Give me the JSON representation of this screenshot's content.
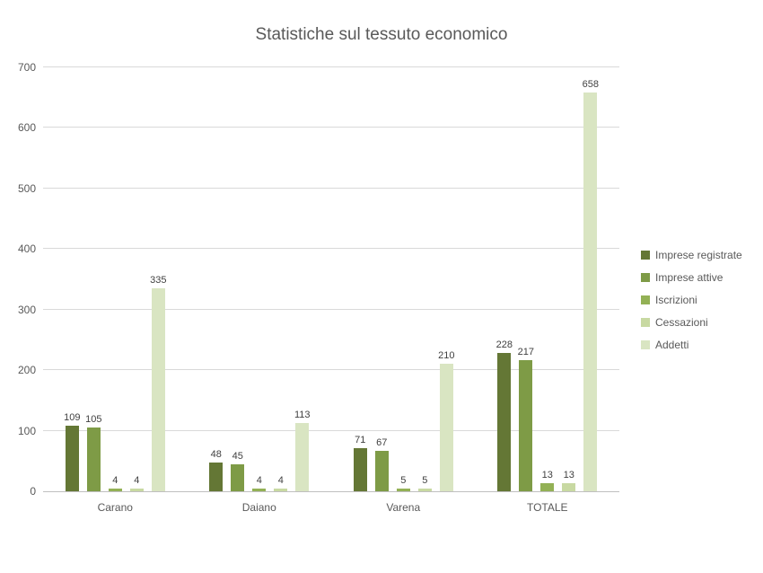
{
  "chart_data": {
    "type": "bar",
    "title": "Statistiche sul tessuto economico",
    "categories": [
      "Carano",
      "Daiano",
      "Varena",
      "TOTALE"
    ],
    "series": [
      {
        "name": "Imprese registrate",
        "color": "#647735",
        "values": [
          109,
          48,
          71,
          228
        ]
      },
      {
        "name": "Imprese attive",
        "color": "#7e9b46",
        "values": [
          105,
          45,
          67,
          217
        ]
      },
      {
        "name": "Iscrizioni",
        "color": "#93b155",
        "values": [
          4,
          4,
          5,
          13
        ]
      },
      {
        "name": "Cessazioni",
        "color": "#c8d9a2",
        "values": [
          4,
          4,
          5,
          13
        ]
      },
      {
        "name": "Addetti",
        "color": "#d9e5c2",
        "values": [
          335,
          113,
          210,
          658
        ]
      }
    ],
    "ylim": [
      0,
      700
    ],
    "ytick_step": 100,
    "grid": true,
    "legend_position": "right",
    "xlabel": "",
    "ylabel": ""
  }
}
